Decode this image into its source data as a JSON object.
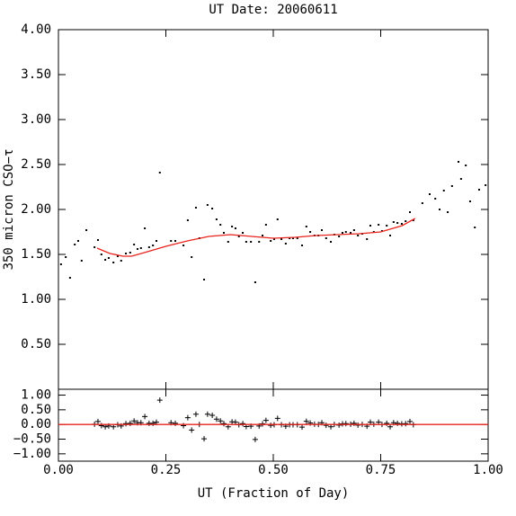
{
  "chart_data": [
    {
      "type": "scatter",
      "title": "UT Date: 20060611",
      "ylabel": "350 micron CSO−τ",
      "xlim": [
        0,
        1
      ],
      "xticks": [
        0,
        0.25,
        0.5,
        0.75,
        1
      ],
      "ylim": [
        0,
        4
      ],
      "yticks": [
        {
          "value": 0.5,
          "label": "0.50"
        },
        {
          "value": 1,
          "label": "1.00"
        },
        {
          "value": 1.5,
          "label": "1.50"
        },
        {
          "value": 2,
          "label": "2.00"
        },
        {
          "value": 2.5,
          "label": "2.50"
        },
        {
          "value": 3,
          "label": "3.00"
        },
        {
          "value": 3.5,
          "label": "3.50"
        },
        {
          "value": 4,
          "label": "4.00"
        }
      ],
      "series": [
        {
          "marker": "dot",
          "color": "#000000",
          "x": [
            0.006,
            0.017,
            0.027,
            0.038,
            0.046,
            0.054,
            0.065,
            0.084,
            0.092,
            0.1,
            0.109,
            0.117,
            0.128,
            0.138,
            0.146,
            0.157,
            0.167,
            0.176,
            0.184,
            0.192,
            0.201,
            0.211,
            0.22,
            0.228,
            0.236,
            0.262,
            0.272,
            0.291,
            0.301,
            0.31,
            0.32,
            0.328,
            0.339,
            0.347,
            0.358,
            0.368,
            0.377,
            0.385,
            0.395,
            0.404,
            0.412,
            0.42,
            0.429,
            0.437,
            0.448,
            0.458,
            0.467,
            0.475,
            0.483,
            0.494,
            0.502,
            0.51,
            0.519,
            0.529,
            0.538,
            0.546,
            0.556,
            0.567,
            0.577,
            0.586,
            0.596,
            0.605,
            0.613,
            0.623,
            0.634,
            0.642,
            0.653,
            0.661,
            0.669,
            0.68,
            0.688,
            0.697,
            0.707,
            0.718,
            0.726,
            0.734,
            0.745,
            0.753,
            0.764,
            0.772,
            0.78,
            0.789,
            0.799,
            0.808,
            0.818,
            0.826,
            0.847,
            0.864,
            0.877,
            0.887,
            0.897,
            0.906,
            0.916,
            0.931,
            0.937,
            0.948,
            0.958,
            0.969,
            0.979,
            0.994
          ],
          "values": [
            1.39,
            1.47,
            1.24,
            1.61,
            1.65,
            1.43,
            1.77,
            1.58,
            1.66,
            1.5,
            1.44,
            1.46,
            1.41,
            1.48,
            1.43,
            1.51,
            1.52,
            1.61,
            1.56,
            1.57,
            1.79,
            1.58,
            1.6,
            1.65,
            2.41,
            1.65,
            1.65,
            1.6,
            1.88,
            1.47,
            2.02,
            1.68,
            1.22,
            2.05,
            2.01,
            1.89,
            1.83,
            1.74,
            1.64,
            1.81,
            1.79,
            1.7,
            1.74,
            1.64,
            1.64,
            1.19,
            1.64,
            1.71,
            1.83,
            1.65,
            1.67,
            1.89,
            1.67,
            1.62,
            1.68,
            1.68,
            1.68,
            1.6,
            1.81,
            1.75,
            1.71,
            1.71,
            1.77,
            1.68,
            1.64,
            1.72,
            1.7,
            1.74,
            1.75,
            1.74,
            1.77,
            1.71,
            1.73,
            1.67,
            1.82,
            1.75,
            1.83,
            1.76,
            1.82,
            1.71,
            1.86,
            1.85,
            1.84,
            1.87,
            1.97,
            1.88,
            2.07,
            2.17,
            2.12,
            2.0,
            2.21,
            1.97,
            2.26,
            2.53,
            2.34,
            2.49,
            2.09,
            1.8,
            2.22,
            2.27
          ]
        },
        {
          "marker": "line",
          "color": "#e8231c",
          "x": [
            0.09,
            0.12,
            0.15,
            0.17,
            0.2,
            0.25,
            0.3,
            0.35,
            0.4,
            0.45,
            0.5,
            0.55,
            0.6,
            0.65,
            0.7,
            0.75,
            0.8,
            0.83
          ],
          "values": [
            1.57,
            1.51,
            1.48,
            1.48,
            1.52,
            1.59,
            1.65,
            1.7,
            1.72,
            1.7,
            1.68,
            1.69,
            1.71,
            1.72,
            1.73,
            1.75,
            1.82,
            1.9
          ]
        }
      ]
    },
    {
      "type": "scatter",
      "xlabel": "UT (Fraction of Day)",
      "xlim": [
        0,
        1
      ],
      "xticks": [
        {
          "value": 0,
          "label": "0.00"
        },
        {
          "value": 0.25,
          "label": "0.25"
        },
        {
          "value": 0.5,
          "label": "0.50"
        },
        {
          "value": 0.75,
          "label": "0.75"
        },
        {
          "value": 1,
          "label": "1.00"
        }
      ],
      "ylim": [
        -1.25,
        1.2
      ],
      "yticks": [
        {
          "value": -1,
          "label": "−1.00"
        },
        {
          "value": -0.5,
          "label": "−0.50"
        },
        {
          "value": 0,
          "label": "0.00"
        },
        {
          "value": 0.5,
          "label": "0.50"
        },
        {
          "value": 1,
          "label": "1.00"
        }
      ],
      "series": [
        {
          "marker": "plus",
          "color": "#000000",
          "x": [
            0.084,
            0.092,
            0.1,
            0.109,
            0.117,
            0.128,
            0.138,
            0.146,
            0.157,
            0.167,
            0.176,
            0.184,
            0.192,
            0.201,
            0.211,
            0.22,
            0.228,
            0.236,
            0.262,
            0.272,
            0.291,
            0.301,
            0.31,
            0.32,
            0.328,
            0.339,
            0.347,
            0.358,
            0.368,
            0.377,
            0.385,
            0.395,
            0.404,
            0.412,
            0.42,
            0.429,
            0.437,
            0.448,
            0.458,
            0.467,
            0.475,
            0.483,
            0.494,
            0.502,
            0.51,
            0.519,
            0.529,
            0.538,
            0.546,
            0.556,
            0.567,
            0.577,
            0.586,
            0.596,
            0.605,
            0.613,
            0.623,
            0.634,
            0.642,
            0.653,
            0.661,
            0.669,
            0.68,
            0.688,
            0.697,
            0.707,
            0.718,
            0.726,
            0.734,
            0.745,
            0.753,
            0.764,
            0.772,
            0.78,
            0.789,
            0.799,
            0.808,
            0.818,
            0.826
          ],
          "values": [
            0.01,
            0.1,
            -0.04,
            -0.08,
            -0.05,
            -0.08,
            -0.01,
            -0.05,
            0.03,
            0.04,
            0.12,
            0.06,
            0.06,
            0.27,
            0.04,
            0.04,
            0.08,
            0.83,
            0.06,
            0.04,
            -0.04,
            0.23,
            -0.19,
            0.35,
            0.0,
            -0.49,
            0.35,
            0.31,
            0.18,
            0.12,
            0.03,
            -0.08,
            0.09,
            0.08,
            -0.01,
            0.03,
            -0.07,
            -0.06,
            -0.51,
            -0.05,
            0.02,
            0.14,
            -0.03,
            -0.01,
            0.21,
            -0.01,
            -0.06,
            -0.01,
            -0.01,
            -0.01,
            -0.09,
            0.11,
            0.05,
            0.01,
            0.0,
            0.06,
            -0.03,
            -0.08,
            0.0,
            -0.02,
            0.02,
            0.03,
            0.01,
            0.04,
            -0.02,
            0.0,
            -0.06,
            0.08,
            0.01,
            0.08,
            0.0,
            0.04,
            -0.08,
            0.06,
            0.04,
            0.02,
            0.03,
            0.1,
            -0.01
          ]
        },
        {
          "marker": "line",
          "color": "#e8231c",
          "x": [
            0,
            1
          ],
          "values": [
            0,
            0
          ]
        }
      ]
    }
  ]
}
